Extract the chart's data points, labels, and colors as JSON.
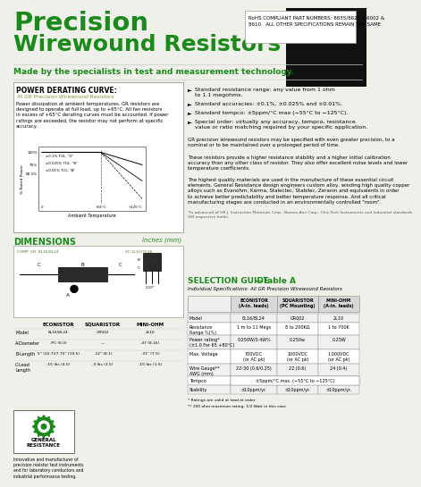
{
  "bg_color": "#f0f0eb",
  "title_line1": "Precision",
  "title_line2": "Wirewound Resistors",
  "title_color": "#1a8a1a",
  "subtitle": "Made by the specialists in test and measurement technology.",
  "subtitle_color": "#1a8a1a",
  "rohs_text": "RoHS COMPLIANT PART NUMBERS: 8635/8624, 66002 &\n8610.  ALL OTHER SPECIFICATIONS REMAIN THE SAME",
  "section1_title": "POWER DERATING CURVE:",
  "section1_sub": "All GR Precision Wirewound Resistors",
  "section1_body": "Power dissipation at ambient temperatures. GR resistors are\ndesigned to operate at full load, up to +65°C. All fan resistors\nin excess of +65°C derating curves must be accounted. If power\nratings are exceeded, the resistor may not perform at specific\naccuracy.",
  "bullet1": "Standard resistance range: any value from 1 ohm\nto 1.1 megohms.",
  "bullet2": "Standard accuracies: ±0.1%, ±0.025% and ±0.01%.",
  "bullet3": "Standard tempco: ±5ppm/°C max (−55°C to −125°C).",
  "bullet4": "Special order: virtually any accuracy, tempco, resistance\nvalue or ratio matching required by your specific application.",
  "body_para1": "GR precision wirewound resistors may be specified with even greater precision, to a\nnominal or to be maintained over a prolonged period of time.",
  "body_para2": "These resistors provide a higher resistance stability and a higher initial calibration\naccuracy than any other class of resistor. They also offer excellent noise levels and lower\ntemperature coefficients.",
  "body_para3": "The highest quality materials are used in the manufacture of these essential circuit\nelements. General Resistance design engineers custom alloy, winding high quality copper\nalloys such as Evanohm, Karma, Stalectec, Stabilec, Zeranin and equivalents in order\nto achieve better predictability and better temperature response. And all critical\nmanufacturing stages are conducted in an environmentally controlled \"room\".",
  "footnote": "*In advanced of GR J. Instruction Materials Corp., Barnes-Ann Corp., Chic-Tech Instruments and industrial standards\nGM respective fields.",
  "dims_title": "DIMENSIONS",
  "dims_units": "inches (mm)",
  "selection_title": "SELECTION GUIDE",
  "selection_dash": "—Table A",
  "selection_sub": "Individual Specifications: All GR Precision Wirewound Resistors",
  "table_footnote1": "* Ratings are valid at load at order",
  "table_footnote2": "** 200 ohm maximum rating: 1/2 Watt in this case"
}
